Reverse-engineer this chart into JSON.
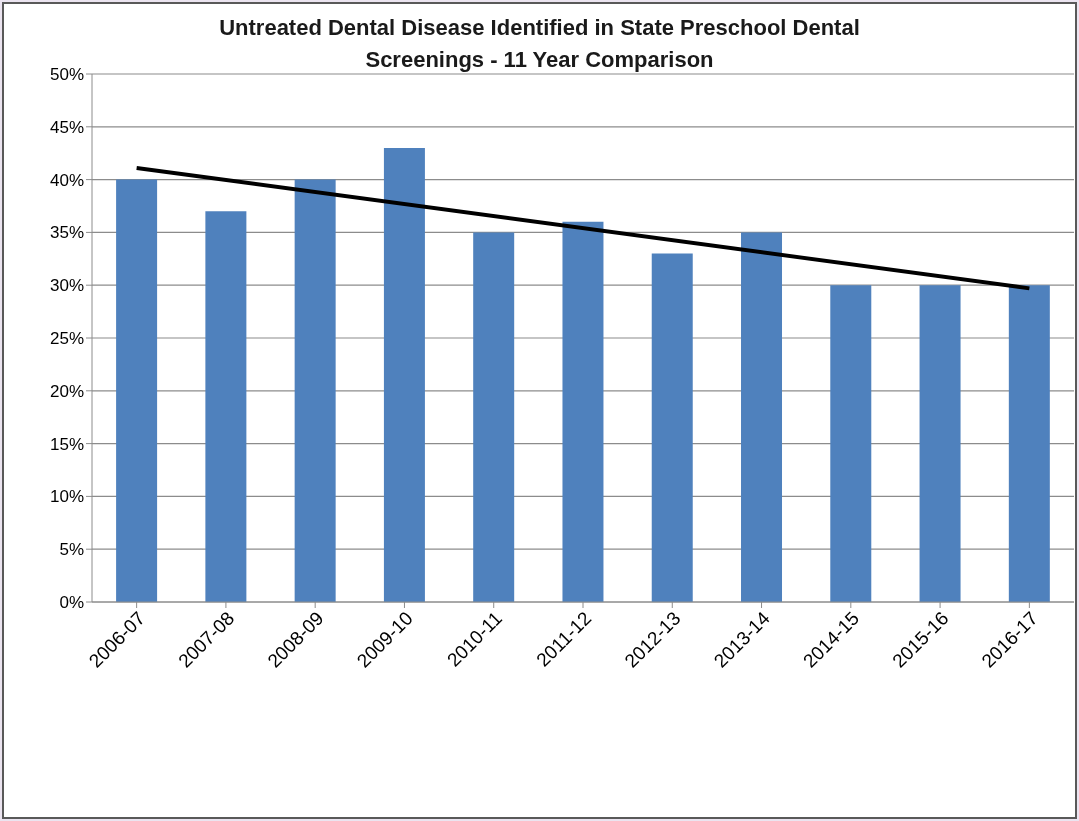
{
  "chart_data": {
    "type": "bar",
    "title": "Untreated Dental Disease Identified in State Preschool Dental Screenings - 11 Year Comparison",
    "categories": [
      "2006-07",
      "2007-08",
      "2008-09",
      "2009-10",
      "2010-11",
      "2011-12",
      "2012-13",
      "2013-14",
      "2014-15",
      "2015-16",
      "2016-17"
    ],
    "series": [
      {
        "color": "#4f81bd",
        "values": [
          40,
          37,
          40,
          43,
          35,
          36,
          33,
          35,
          30,
          30,
          30
        ]
      },
      {
        "type": "line",
        "color": "#000000",
        "values": [
          41.1,
          null,
          null,
          null,
          null,
          null,
          null,
          null,
          null,
          null,
          29.7
        ]
      }
    ],
    "ylim": [
      0,
      50
    ],
    "yticks": [
      {
        "value": 0,
        "label": "0%"
      },
      {
        "value": 5,
        "label": "5%"
      },
      {
        "value": 10,
        "label": "10%"
      },
      {
        "value": 15,
        "label": "15%"
      },
      {
        "value": 20,
        "label": "20%"
      },
      {
        "value": 25,
        "label": "25%"
      },
      {
        "value": 30,
        "label": "30%"
      },
      {
        "value": 35,
        "label": "35%"
      },
      {
        "value": 40,
        "label": "40%"
      },
      {
        "value": 45,
        "label": "45%"
      },
      {
        "value": 50,
        "label": "50%"
      }
    ],
    "grid": "y",
    "legend": false,
    "marker": "none",
    "line_style": "solid"
  }
}
